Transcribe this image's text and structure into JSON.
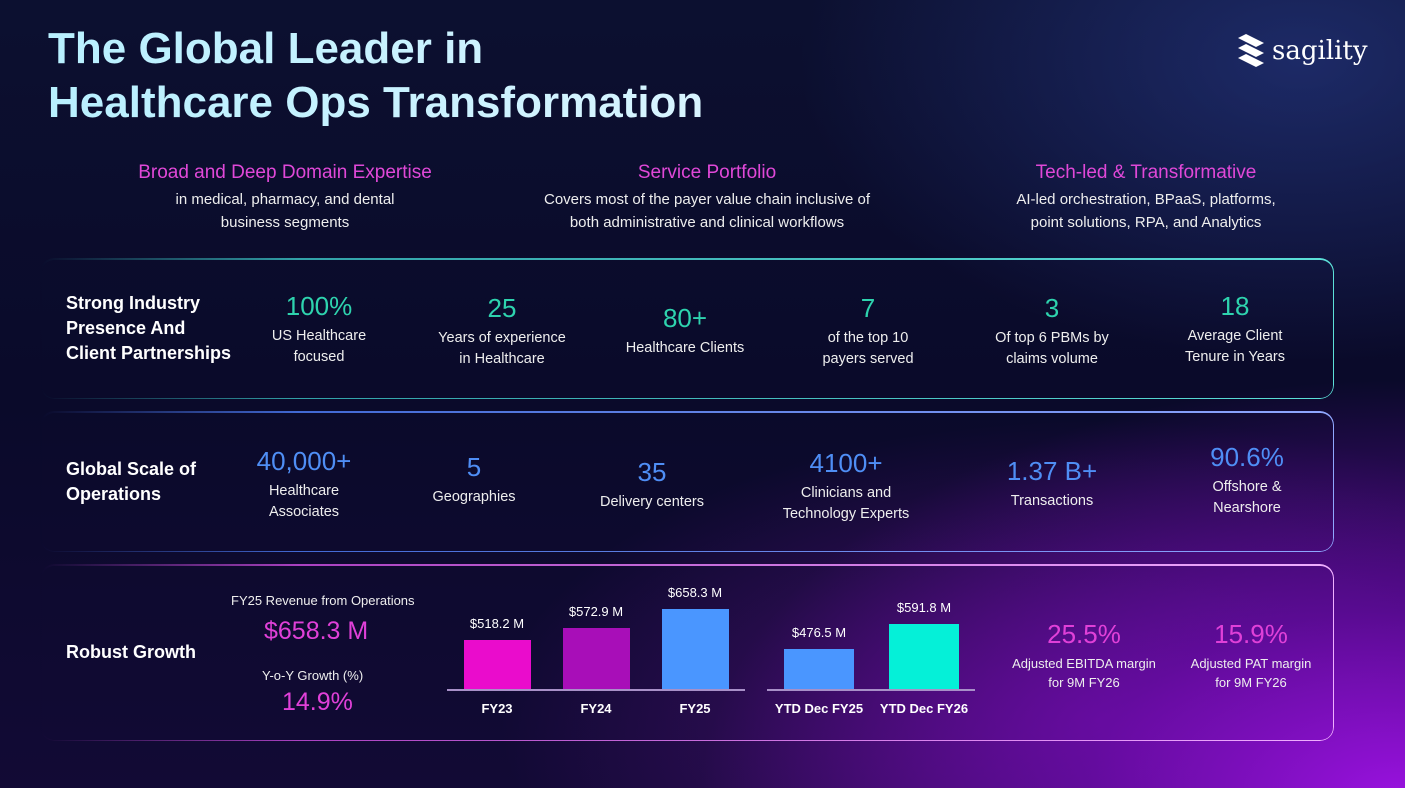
{
  "title": [
    "The Global Leader in",
    "Healthcare Ops Transformation"
  ],
  "logo": {
    "text": "sagility"
  },
  "columns": [
    {
      "heading": "Broad and Deep Domain Expertise",
      "text": [
        "in medical, pharmacy, and dental",
        "business segments"
      ]
    },
    {
      "heading": "Service Portfolio",
      "text": [
        "Covers most of the payer value chain inclusive of",
        "both administrative  and clinical workflows"
      ]
    },
    {
      "heading": "Tech-led & Transformative",
      "text": [
        "AI-led orchestration, BPaaS, platforms,",
        "point solutions, RPA, and Analytics"
      ]
    }
  ],
  "rows": [
    {
      "label": [
        "Strong Industry",
        "Presence And",
        "Client Partnerships"
      ],
      "stats": [
        {
          "value": "100%",
          "label": [
            "US Healthcare",
            "focused"
          ]
        },
        {
          "value": "25",
          "label": [
            "Years of experience",
            "in Healthcare"
          ]
        },
        {
          "value": "80+",
          "label": [
            "Healthcare Clients"
          ]
        },
        {
          "value": "7",
          "label": [
            "of the top 10",
            "payers served"
          ]
        },
        {
          "value": "3",
          "label": [
            "Of top 6 PBMs by",
            "claims volume"
          ]
        },
        {
          "value": "18",
          "label": [
            "Average Client",
            "Tenure in Years"
          ]
        }
      ]
    },
    {
      "label": [
        "Global Scale of",
        "Operations"
      ],
      "stats": [
        {
          "value": "40,000+",
          "label": [
            "Healthcare",
            "Associates"
          ]
        },
        {
          "value": "5",
          "label": [
            "Geographies"
          ]
        },
        {
          "value": "35",
          "label": [
            "Delivery centers"
          ]
        },
        {
          "value": "4100+",
          "label": [
            "Clinicians and",
            "Technology Experts"
          ]
        },
        {
          "value": "1.37 B+",
          "label": [
            "Transactions"
          ]
        },
        {
          "value": "90.6%",
          "label": [
            "Offshore &",
            "Nearshore"
          ]
        }
      ]
    }
  ],
  "growth": {
    "label": "Robust Growth",
    "revenue_label": "FY25 Revenue from Operations",
    "revenue": "$658.3 M",
    "yoy_label": "Y-o-Y Growth (%)",
    "yoy": "14.9%",
    "margins": [
      {
        "value": "25.5%",
        "label": [
          "Adjusted EBITDA margin",
          "for 9M FY26"
        ]
      },
      {
        "value": "15.9%",
        "label": [
          "Adjusted PAT margin",
          "for 9M FY26"
        ]
      }
    ]
  },
  "chart_data": [
    {
      "type": "bar",
      "title": "",
      "categories": [
        "FY23",
        "FY24",
        "FY25"
      ],
      "values": [
        518.2,
        572.9,
        658.3
      ],
      "labels": [
        "$518.2 M",
        "$572.9 M",
        "$658.3 M"
      ],
      "colors": [
        "#ea0ccc",
        "#a80eb8",
        "#4a96ff"
      ],
      "unit": "$M"
    },
    {
      "type": "bar",
      "title": "",
      "categories": [
        "YTD Dec FY25",
        "YTD Dec FY26"
      ],
      "values": [
        476.5,
        591.8
      ],
      "labels": [
        "$476.5 M",
        "$591.8 M"
      ],
      "colors": [
        "#4a96ff",
        "#05f0d8"
      ],
      "unit": "$M"
    }
  ]
}
